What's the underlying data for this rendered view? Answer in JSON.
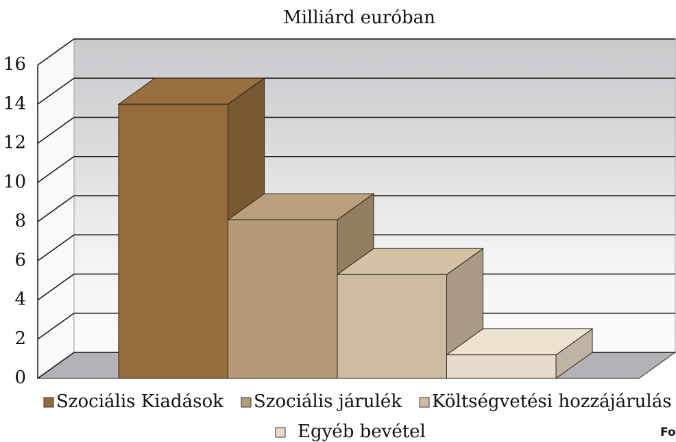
{
  "chart_data": {
    "type": "bar3d",
    "title": "Milliárd euróban",
    "categories": [
      "Szociális Kiadások",
      "Szociális járulék",
      "Költségvetési hozzájárulás",
      "Egyéb bevétel"
    ],
    "values": [
      14,
      8.1,
      5.3,
      1.2
    ],
    "colors": [
      "#946c3c",
      "#b49a77",
      "#cdbca1",
      "#e6dccb"
    ],
    "ylim": [
      0,
      16
    ],
    "yticks": [
      0,
      2,
      4,
      6,
      8,
      10,
      12,
      14,
      16
    ],
    "grid": true,
    "note": "Fo"
  }
}
